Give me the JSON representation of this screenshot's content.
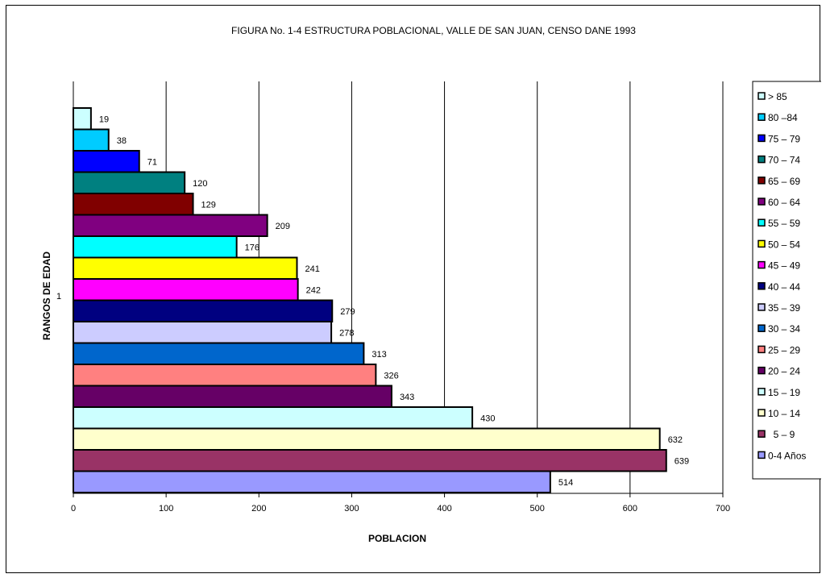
{
  "chart_data": {
    "type": "bar",
    "orientation": "horizontal",
    "title": "FIGURA No. 1-4   ESTRUCTURA POBLACIONAL, VALLE DE SAN JUAN, CENSO DANE 1993",
    "xlabel": "POBLACION",
    "ylabel": "RANGOS DE EDAD",
    "category_label": "1",
    "xlim": [
      0,
      700
    ],
    "xticks": [
      0,
      100,
      200,
      300,
      400,
      500,
      600,
      700
    ],
    "grid": "vertical",
    "legend_position": "right",
    "series": [
      {
        "name": "0-4 Años",
        "value": 514,
        "color": "#9999ff"
      },
      {
        "name": "  5 – 9",
        "value": 639,
        "color": "#993366"
      },
      {
        "name": "10 – 14",
        "value": 632,
        "color": "#ffffcc"
      },
      {
        "name": "15 – 19",
        "value": 430,
        "color": "#ccffff"
      },
      {
        "name": "20 – 24",
        "value": 343,
        "color": "#660066"
      },
      {
        "name": "25 – 29",
        "value": 326,
        "color": "#ff8080"
      },
      {
        "name": "30 – 34",
        "value": 313,
        "color": "#0066cc"
      },
      {
        "name": "35 – 39",
        "value": 278,
        "color": "#ccccff"
      },
      {
        "name": "40 – 44",
        "value": 279,
        "color": "#000080"
      },
      {
        "name": "45 – 49",
        "value": 242,
        "color": "#ff00ff"
      },
      {
        "name": "50 – 54",
        "value": 241,
        "color": "#ffff00"
      },
      {
        "name": "55 – 59",
        "value": 176,
        "color": "#00ffff"
      },
      {
        "name": "60 – 64",
        "value": 209,
        "color": "#800080"
      },
      {
        "name": "65 – 69",
        "value": 129,
        "color": "#800000"
      },
      {
        "name": "70 – 74",
        "value": 120,
        "color": "#008080"
      },
      {
        "name": "75 – 79",
        "value": 71,
        "color": "#0000ff"
      },
      {
        "name": "80 –84",
        "value": 38,
        "color": "#00ccff"
      },
      {
        "name": "> 85",
        "value": 19,
        "color": "#ccffff"
      }
    ]
  }
}
